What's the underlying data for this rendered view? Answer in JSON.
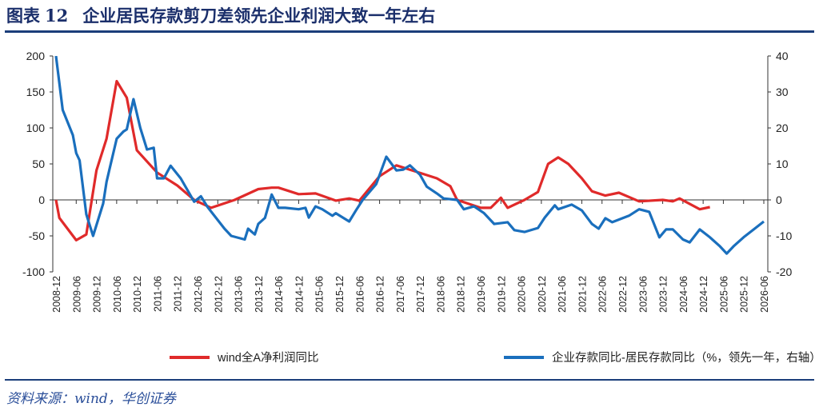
{
  "header": {
    "figure_label": "图表",
    "figure_number": "12",
    "title": "企业居民存款剪刀差领先企业利润大致一年左右"
  },
  "source": "资料来源：wind，华创证券",
  "colors": {
    "red": "#e02a2a",
    "blue": "#1a6fbd",
    "title": "#1b2f6b",
    "rule": "#1b3e7a"
  },
  "chart_data": {
    "type": "line",
    "x_ticks": [
      "2008-12",
      "2009-06",
      "2009-12",
      "2010-06",
      "2010-12",
      "2011-06",
      "2011-12",
      "2012-06",
      "2012-12",
      "2013-06",
      "2013-12",
      "2014-06",
      "2014-12",
      "2015-06",
      "2015-12",
      "2016-06",
      "2016-12",
      "2017-06",
      "2017-12",
      "2018-06",
      "2018-12",
      "2019-06",
      "2019-12",
      "2020-06",
      "2020-12",
      "2021-06",
      "2021-12",
      "2022-06",
      "2022-12",
      "2023-06",
      "2023-12",
      "2024-06",
      "2024-12",
      "2025-06",
      "2025-12",
      "2026-06"
    ],
    "y_left": {
      "min": -100,
      "max": 200,
      "ticks": [
        200,
        150,
        100,
        50,
        0,
        -50,
        -100
      ]
    },
    "y_right": {
      "min": -20,
      "max": 40,
      "ticks": [
        40,
        30,
        20,
        10,
        0,
        -10,
        -20
      ]
    },
    "grid": false,
    "legend_position": "bottom",
    "series": [
      {
        "name": "wind全A净利润同比",
        "axis": "left",
        "color": "#e02a2a",
        "points": [
          [
            "2008-12",
            0
          ],
          [
            "2009-01",
            -25
          ],
          [
            "2009-06",
            -56
          ],
          [
            "2009-09",
            -48
          ],
          [
            "2009-12",
            41
          ],
          [
            "2010-03",
            85
          ],
          [
            "2010-06",
            165
          ],
          [
            "2010-09",
            142
          ],
          [
            "2010-12",
            69
          ],
          [
            "2011-06",
            38
          ],
          [
            "2011-12",
            20
          ],
          [
            "2012-05",
            0
          ],
          [
            "2012-10",
            -11
          ],
          [
            "2013-05",
            0
          ],
          [
            "2013-12",
            15
          ],
          [
            "2014-04",
            17
          ],
          [
            "2014-06",
            17
          ],
          [
            "2014-12",
            8
          ],
          [
            "2015-05",
            9
          ],
          [
            "2015-11",
            -1
          ],
          [
            "2016-03",
            2
          ],
          [
            "2016-06",
            -1
          ],
          [
            "2016-12",
            33
          ],
          [
            "2017-05",
            48
          ],
          [
            "2017-11",
            39
          ],
          [
            "2018-05",
            30
          ],
          [
            "2018-09",
            19
          ],
          [
            "2018-11",
            0
          ],
          [
            "2019-06",
            -11
          ],
          [
            "2019-09",
            -11
          ],
          [
            "2019-12",
            3
          ],
          [
            "2020-02",
            -11
          ],
          [
            "2020-07",
            0
          ],
          [
            "2020-11",
            11
          ],
          [
            "2021-02",
            50
          ],
          [
            "2021-05",
            59
          ],
          [
            "2021-08",
            50
          ],
          [
            "2021-12",
            30
          ],
          [
            "2022-03",
            12
          ],
          [
            "2022-07",
            6
          ],
          [
            "2022-11",
            10
          ],
          [
            "2023-05",
            -2
          ],
          [
            "2023-12",
            0
          ],
          [
            "2024-03",
            -2
          ],
          [
            "2024-05",
            2
          ],
          [
            "2024-11",
            -13
          ],
          [
            "2025-02",
            -10
          ]
        ]
      },
      {
        "name": "企业存款同比-居民存款同比（%，领先一年，右轴）",
        "axis": "right",
        "color": "#1a6fbd",
        "points": [
          [
            "2008-12",
            40
          ],
          [
            "2009-02",
            25
          ],
          [
            "2009-05",
            18
          ],
          [
            "2009-06",
            13
          ],
          [
            "2009-07",
            11
          ],
          [
            "2009-09",
            -4
          ],
          [
            "2009-11",
            -10
          ],
          [
            "2010-02",
            -1
          ],
          [
            "2010-03",
            5
          ],
          [
            "2010-04",
            9
          ],
          [
            "2010-06",
            17
          ],
          [
            "2010-08",
            19
          ],
          [
            "2010-09",
            19.6
          ],
          [
            "2010-11",
            28
          ],
          [
            "2011-01",
            20
          ],
          [
            "2011-03",
            14
          ],
          [
            "2011-05",
            14.5
          ],
          [
            "2011-06",
            6
          ],
          [
            "2011-08",
            6
          ],
          [
            "2011-10",
            9.5
          ],
          [
            "2012-01",
            6
          ],
          [
            "2012-05",
            -0.5
          ],
          [
            "2012-07",
            1
          ],
          [
            "2012-09",
            -2
          ],
          [
            "2013-02",
            -8
          ],
          [
            "2013-04",
            -10
          ],
          [
            "2013-08",
            -11
          ],
          [
            "2013-09",
            -8
          ],
          [
            "2013-11",
            -9.6
          ],
          [
            "2013-12",
            -6.7
          ],
          [
            "2014-02",
            -5
          ],
          [
            "2014-04",
            1.5
          ],
          [
            "2014-06",
            -2.2
          ],
          [
            "2014-08",
            -2.2
          ],
          [
            "2014-12",
            -2.6
          ],
          [
            "2015-02",
            -2.2
          ],
          [
            "2015-03",
            -4.9
          ],
          [
            "2015-05",
            -1.8
          ],
          [
            "2015-07",
            -2.6
          ],
          [
            "2015-10",
            -4.4
          ],
          [
            "2015-11",
            -3.7
          ],
          [
            "2016-03",
            -6
          ],
          [
            "2016-05",
            -2.9
          ],
          [
            "2016-07",
            0
          ],
          [
            "2016-11",
            4.4
          ],
          [
            "2017-02",
            12
          ],
          [
            "2017-05",
            8.2
          ],
          [
            "2017-07",
            8.4
          ],
          [
            "2017-09",
            9.6
          ],
          [
            "2017-12",
            7
          ],
          [
            "2018-02",
            3.7
          ],
          [
            "2018-05",
            1.8
          ],
          [
            "2018-07",
            0.4
          ],
          [
            "2018-11",
            0
          ],
          [
            "2019-01",
            -2.6
          ],
          [
            "2019-04",
            -1.8
          ],
          [
            "2019-07",
            -3.7
          ],
          [
            "2019-10",
            -6.7
          ],
          [
            "2020-02",
            -6.2
          ],
          [
            "2020-04",
            -8.4
          ],
          [
            "2020-07",
            -8.9
          ],
          [
            "2020-11",
            -7.8
          ],
          [
            "2021-01",
            -4.9
          ],
          [
            "2021-04",
            -1.5
          ],
          [
            "2021-05",
            -2.6
          ],
          [
            "2021-09",
            -1.3
          ],
          [
            "2021-12",
            -2.9
          ],
          [
            "2022-03",
            -6.7
          ],
          [
            "2022-05",
            -8
          ],
          [
            "2022-07",
            -5.1
          ],
          [
            "2022-09",
            -6.2
          ],
          [
            "2023-02",
            -4.4
          ],
          [
            "2023-05",
            -2.6
          ],
          [
            "2023-08",
            -3.3
          ],
          [
            "2023-11",
            -10.4
          ],
          [
            "2024-01",
            -8.2
          ],
          [
            "2024-03",
            -8.2
          ],
          [
            "2024-06",
            -11
          ],
          [
            "2024-08",
            -11.8
          ],
          [
            "2024-11",
            -8.2
          ],
          [
            "2025-02",
            -10.4
          ],
          [
            "2025-05",
            -12.9
          ],
          [
            "2025-07",
            -14.9
          ],
          [
            "2025-09",
            -12.9
          ],
          [
            "2025-12",
            -10.4
          ],
          [
            "2026-03",
            -8.2
          ],
          [
            "2026-06",
            -6
          ]
        ]
      }
    ]
  }
}
